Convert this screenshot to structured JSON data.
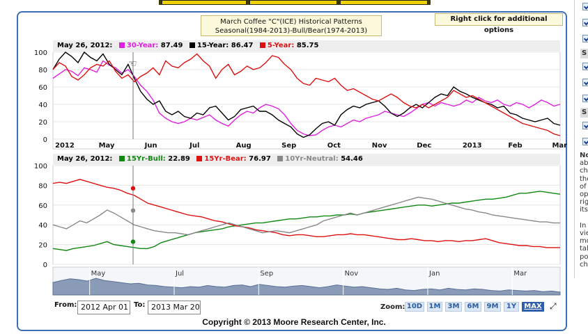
{
  "title": {
    "line1": "March Coffee \"C\"(ICE) Historical Patterns",
    "line2": "Seasonal(1984-2013)-Bull/Bear(1974-2013)"
  },
  "right_click_hint": "Right click for additional options",
  "colors": {
    "thirty_year": "#e020e0",
    "fifteen_year": "#000000",
    "five_year": "#dd1111",
    "bull": "#118811",
    "bear": "#dd1111",
    "neutral": "#888888",
    "frame": "#3a6fb5",
    "nav_fill": "#8a9bb8"
  },
  "chart_data": [
    {
      "type": "line",
      "header_date": "May 26, 2012:",
      "legend": [
        {
          "label": "30-Year:",
          "value": "87.49",
          "color": "#e020e0"
        },
        {
          "label": "15-Year:",
          "value": "86.47",
          "color": "#000000"
        },
        {
          "label": "5-Year:",
          "value": "85.75",
          "color": "#dd1111"
        }
      ],
      "x_ticks": [
        "2012",
        "May",
        "Jun",
        "Jul",
        "Aug",
        "Sep",
        "Oct",
        "Nov",
        "Dec",
        "2013",
        "Feb",
        "Mar"
      ],
      "x_tick_pos": [
        0,
        0.129,
        0.265,
        0.398,
        0.535,
        0.67,
        0.805,
        0.937,
        1.07,
        1.205,
        1.34,
        1.47
      ],
      "y_ticks": [
        "100",
        "80",
        "60",
        "40",
        "20",
        "0"
      ],
      "ylim": [
        0,
        100
      ],
      "series": [
        {
          "name": "30-Year",
          "color": "#e020e0",
          "values": [
            70,
            75,
            80,
            78,
            73,
            82,
            80,
            77,
            90,
            85,
            82,
            76,
            80,
            72,
            62,
            55,
            45,
            30,
            24,
            20,
            18,
            20,
            24,
            22,
            25,
            28,
            22,
            18,
            15,
            22,
            28,
            32,
            30,
            36,
            40,
            38,
            35,
            28,
            18,
            10,
            6,
            4,
            5,
            10,
            14,
            16,
            14,
            18,
            22,
            20,
            24,
            26,
            28,
            32,
            30,
            28,
            26,
            30,
            35,
            40,
            42,
            38,
            42,
            40,
            38,
            40,
            45,
            42,
            48,
            44,
            42,
            45,
            40,
            38,
            42,
            40,
            36,
            40,
            45,
            42,
            38,
            40
          ]
        },
        {
          "name": "15-Year",
          "color": "#000000",
          "values": [
            80,
            92,
            100,
            95,
            88,
            100,
            94,
            90,
            98,
            86,
            80,
            74,
            86,
            70,
            55,
            46,
            40,
            44,
            32,
            28,
            32,
            26,
            24,
            30,
            28,
            36,
            38,
            30,
            22,
            26,
            34,
            36,
            38,
            32,
            32,
            28,
            22,
            18,
            14,
            6,
            2,
            5,
            12,
            18,
            20,
            16,
            28,
            34,
            38,
            36,
            40,
            42,
            44,
            38,
            30,
            26,
            30,
            36,
            40,
            36,
            42,
            48,
            52,
            50,
            60,
            55,
            52,
            48,
            45,
            42,
            40,
            36,
            38,
            30,
            28,
            24,
            22,
            20,
            22,
            24,
            18,
            16
          ]
        },
        {
          "name": "5-Year",
          "color": "#dd1111",
          "values": [
            80,
            88,
            84,
            72,
            68,
            74,
            82,
            86,
            84,
            90,
            78,
            70,
            74,
            66,
            72,
            76,
            82,
            74,
            90,
            84,
            82,
            88,
            92,
            98,
            90,
            84,
            70,
            80,
            86,
            74,
            78,
            84,
            80,
            82,
            88,
            96,
            94,
            86,
            80,
            70,
            64,
            62,
            70,
            68,
            66,
            70,
            62,
            56,
            58,
            54,
            50,
            46,
            44,
            48,
            52,
            48,
            42,
            38,
            36,
            40,
            36,
            40,
            44,
            48,
            56,
            52,
            48,
            50,
            46,
            42,
            38,
            34,
            30,
            26,
            22,
            18,
            16,
            14,
            12,
            10,
            6,
            4
          ]
        }
      ]
    },
    {
      "type": "line",
      "header_date": "May 26, 2012:",
      "legend": [
        {
          "label": "15Yr-Bull:",
          "value": "22.89",
          "color": "#118811"
        },
        {
          "label": "15Yr-Bear:",
          "value": "76.97",
          "color": "#dd1111"
        },
        {
          "label": "10Yr-Neutral:",
          "value": "54.46",
          "color": "#888888"
        }
      ],
      "y_ticks": [
        "100",
        "80",
        "60",
        "40",
        "20",
        "0"
      ],
      "ylim": [
        0,
        100
      ],
      "series": [
        {
          "name": "15Yr-Bull",
          "color": "#118811",
          "values": [
            16,
            15,
            14,
            16,
            17,
            18,
            19,
            21,
            23,
            20,
            19,
            18,
            17,
            16,
            16,
            18,
            22,
            24,
            26,
            28,
            30,
            32,
            33,
            34,
            35,
            36,
            38,
            39,
            40,
            41,
            42,
            42,
            43,
            44,
            45,
            46,
            46,
            47,
            48,
            48,
            49,
            49,
            50,
            50,
            51,
            50,
            52,
            53,
            54,
            55,
            56,
            57,
            58,
            59,
            60,
            60,
            59,
            60,
            61,
            62,
            62,
            63,
            64,
            65,
            66,
            66,
            67,
            68,
            70,
            72,
            72,
            73,
            74,
            73,
            72,
            71
          ]
        },
        {
          "name": "15Yr-Bear",
          "color": "#dd1111",
          "values": [
            82,
            83,
            82,
            84,
            86,
            84,
            82,
            80,
            78,
            77,
            75,
            72,
            70,
            66,
            62,
            60,
            58,
            56,
            54,
            52,
            50,
            49,
            48,
            46,
            44,
            43,
            41,
            39,
            38,
            37,
            35,
            34,
            33,
            32,
            30,
            29,
            30,
            30,
            29,
            28,
            28,
            29,
            30,
            30,
            31,
            30,
            30,
            29,
            28,
            27,
            26,
            25,
            25,
            26,
            25,
            24,
            24,
            23,
            24,
            24,
            23,
            24,
            24,
            25,
            26,
            24,
            22,
            21,
            20,
            19,
            19,
            18,
            18,
            17,
            17,
            17
          ]
        },
        {
          "name": "10Yr-Neutral",
          "color": "#888888",
          "values": [
            40,
            38,
            36,
            40,
            44,
            42,
            46,
            50,
            55,
            52,
            48,
            44,
            40,
            38,
            36,
            34,
            33,
            32,
            32,
            31,
            30,
            32,
            34,
            36,
            38,
            40,
            42,
            40,
            38,
            36,
            34,
            32,
            33,
            34,
            33,
            32,
            34,
            36,
            38,
            40,
            44,
            46,
            48,
            50,
            52,
            50,
            52,
            54,
            56,
            58,
            60,
            62,
            64,
            66,
            68,
            67,
            66,
            64,
            62,
            60,
            58,
            56,
            55,
            53,
            52,
            50,
            49,
            48,
            47,
            46,
            45,
            44,
            43,
            43,
            42,
            42
          ]
        }
      ]
    }
  ],
  "navigator": {
    "labels": [
      "May",
      "Jul",
      "Sep",
      "Nov",
      "Jan",
      "Mar"
    ],
    "values": [
      45,
      52,
      58,
      55,
      50,
      60,
      52,
      48,
      44,
      40,
      42,
      36,
      34,
      30,
      28,
      26,
      30,
      28,
      34,
      30,
      28,
      34,
      36,
      30,
      38,
      34,
      30,
      28,
      32,
      34,
      30,
      26,
      30,
      36,
      32,
      28,
      30,
      26,
      22,
      20,
      24,
      18,
      16,
      20,
      22,
      18,
      24,
      20,
      18,
      22,
      20,
      16,
      14,
      18,
      16,
      14,
      16,
      12,
      14,
      10
    ]
  },
  "controls": {
    "from_label": "From:",
    "from_value": "2012 Apr 01",
    "to_label": "To:",
    "to_value": "2013 Mar 20",
    "zoom_label": "Zoom:",
    "zoom_buttons": [
      "10D",
      "1M",
      "3M",
      "6M",
      "9M",
      "1Y",
      "MAX"
    ],
    "zoom_active": "MAX"
  },
  "copyright": "Copyright © 2013 Moore Research Center, Inc.",
  "right_panel": {
    "section_labels": [
      "S",
      "S"
    ],
    "text_lines": [
      "No",
      "ab",
      "ch",
      "the",
      "of",
      "op",
      "rig",
      "its",
      "",
      "In",
      "vie",
      "mo",
      "tal",
      "po",
      "ch"
    ]
  }
}
